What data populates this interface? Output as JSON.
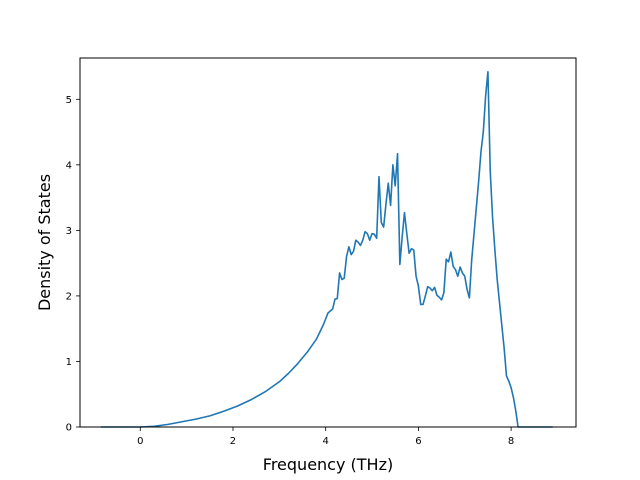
{
  "chart_data": {
    "type": "line",
    "title": "",
    "xlabel": "Frequency (THz)",
    "ylabel": "Density of States",
    "xlim": [
      -1.3,
      9.4
    ],
    "ylim": [
      0,
      5.63
    ],
    "grid": false,
    "legend": "none",
    "x_ticks": [
      0,
      2,
      4,
      6,
      8
    ],
    "x_tick_labels": [
      "0",
      "2",
      "4",
      "6",
      "8"
    ],
    "y_ticks": [
      0,
      1,
      2,
      3,
      4,
      5
    ],
    "y_tick_labels": [
      "0",
      "1",
      "2",
      "3",
      "4",
      "5"
    ],
    "series": [
      {
        "color": "#1f77b4",
        "x": [
          -0.85,
          0.0,
          0.3,
          0.6,
          0.9,
          1.2,
          1.5,
          1.8,
          2.1,
          2.4,
          2.7,
          3.0,
          3.2,
          3.4,
          3.6,
          3.8,
          3.95,
          4.05,
          4.15,
          4.2,
          4.25,
          4.3,
          4.35,
          4.4,
          4.45,
          4.5,
          4.55,
          4.6,
          4.65,
          4.7,
          4.75,
          4.8,
          4.85,
          4.9,
          4.95,
          5.0,
          5.05,
          5.1,
          5.15,
          5.2,
          5.25,
          5.3,
          5.35,
          5.4,
          5.45,
          5.5,
          5.55,
          5.6,
          5.65,
          5.7,
          5.75,
          5.8,
          5.85,
          5.9,
          5.95,
          6.0,
          6.05,
          6.1,
          6.15,
          6.2,
          6.25,
          6.3,
          6.35,
          6.4,
          6.45,
          6.5,
          6.55,
          6.6,
          6.65,
          6.7,
          6.75,
          6.8,
          6.85,
          6.9,
          6.95,
          7.0,
          7.05,
          7.1,
          7.15,
          7.2,
          7.25,
          7.3,
          7.35,
          7.4,
          7.45,
          7.5,
          7.55,
          7.6,
          7.65,
          7.7,
          7.75,
          7.8,
          7.85,
          7.9,
          7.95,
          8.0,
          8.05,
          8.1,
          8.15,
          8.9
        ],
        "y": [
          0,
          0,
          0.01,
          0.04,
          0.08,
          0.12,
          0.17,
          0.24,
          0.32,
          0.42,
          0.54,
          0.69,
          0.82,
          0.97,
          1.14,
          1.34,
          1.56,
          1.74,
          1.8,
          1.95,
          1.96,
          2.35,
          2.25,
          2.27,
          2.6,
          2.75,
          2.63,
          2.68,
          2.85,
          2.82,
          2.77,
          2.85,
          2.98,
          2.95,
          2.85,
          2.95,
          2.94,
          2.88,
          3.82,
          3.12,
          3.05,
          3.4,
          3.72,
          3.38,
          4.0,
          3.68,
          4.17,
          2.48,
          2.9,
          3.27,
          2.95,
          2.65,
          2.72,
          2.7,
          2.3,
          2.15,
          1.87,
          1.87,
          2.0,
          2.14,
          2.12,
          2.08,
          2.13,
          2.01,
          1.98,
          1.94,
          2.05,
          2.56,
          2.52,
          2.67,
          2.45,
          2.4,
          2.3,
          2.44,
          2.35,
          2.3,
          2.1,
          1.97,
          2.55,
          2.95,
          3.35,
          3.75,
          4.2,
          4.5,
          5.05,
          5.42,
          3.9,
          3.2,
          2.7,
          2.25,
          1.9,
          1.55,
          1.2,
          0.78,
          0.7,
          0.6,
          0.45,
          0.25,
          0,
          0
        ]
      }
    ]
  }
}
